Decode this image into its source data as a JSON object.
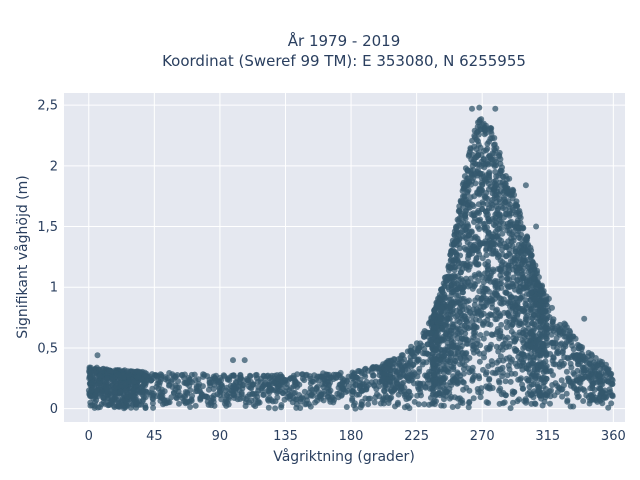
{
  "chart_data": {
    "type": "scatter",
    "title_line1": "År 1979 - 2019",
    "title_line2": "Koordinat (Sweref 99 TM): E 353080, N 6255955",
    "xlabel": "Vågriktning (grader)",
    "ylabel": "Signifikant våghöjd (m)",
    "xlim": [
      -17,
      368
    ],
    "ylim": [
      -0.11,
      2.6
    ],
    "x_ticks": [
      0,
      45,
      90,
      135,
      180,
      225,
      270,
      315,
      360
    ],
    "x_tick_labels": [
      "0",
      "45",
      "90",
      "135",
      "180",
      "225",
      "270",
      "315",
      "360"
    ],
    "y_ticks": [
      0,
      0.5,
      1,
      1.5,
      2,
      2.5
    ],
    "y_tick_labels": [
      "0",
      "0,5",
      "1",
      "1,5",
      "2",
      "2,5"
    ],
    "grid": true,
    "marker_color": "#34586e",
    "background_color": "#e5e8f0",
    "envelope": {
      "x": [
        0,
        10,
        20,
        45,
        90,
        135,
        180,
        200,
        215,
        225,
        235,
        245,
        250,
        255,
        260,
        265,
        270,
        275,
        280,
        285,
        290,
        295,
        300,
        310,
        320,
        330,
        340,
        350,
        360
      ],
      "y_max": [
        0.35,
        0.33,
        0.32,
        0.3,
        0.28,
        0.28,
        0.3,
        0.36,
        0.45,
        0.55,
        0.75,
        1.1,
        1.4,
        1.75,
        2.05,
        2.35,
        2.45,
        2.35,
        2.2,
        2.0,
        1.85,
        1.65,
        1.45,
        1.05,
        0.8,
        0.65,
        0.5,
        0.4,
        0.33
      ]
    },
    "outliers": [
      {
        "x": 6,
        "y": 0.44
      },
      {
        "x": 99,
        "y": 0.4
      },
      {
        "x": 107,
        "y": 0.4
      },
      {
        "x": 263,
        "y": 2.47
      },
      {
        "x": 268,
        "y": 2.48
      },
      {
        "x": 279,
        "y": 2.47
      },
      {
        "x": 300,
        "y": 1.84
      },
      {
        "x": 307,
        "y": 1.5
      },
      {
        "x": 340,
        "y": 0.74
      },
      {
        "x": 183,
        "y": 0.0
      }
    ]
  }
}
